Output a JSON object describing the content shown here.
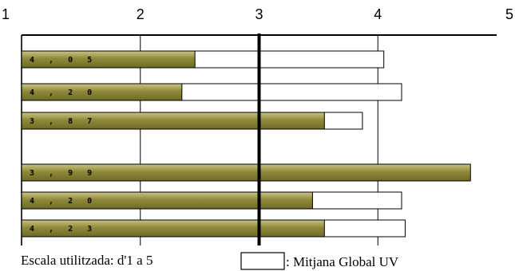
{
  "chart_data": {
    "type": "bar",
    "orientation": "horizontal",
    "xlim": [
      1,
      5
    ],
    "ticks": [
      "1",
      "2",
      "3",
      "4",
      "5"
    ],
    "reference_line": 3,
    "grid": true,
    "groups": [
      {
        "rows": [
          {
            "label": "4 , 0 5",
            "value": 2.46,
            "global_mean": 4.05
          },
          {
            "label": "4 , 2 0",
            "value": 2.35,
            "global_mean": 4.2
          },
          {
            "label": "3 , 8 7",
            "value": 3.55,
            "global_mean": 3.87
          }
        ]
      },
      {
        "rows": [
          {
            "label": "3 , 9 9",
            "value": 4.78,
            "global_mean": 3.99
          },
          {
            "label": "4 , 2 0",
            "value": 3.45,
            "global_mean": 4.2
          },
          {
            "label": "4 , 2 3",
            "value": 3.55,
            "global_mean": 4.23
          }
        ]
      }
    ],
    "colors": {
      "bar": "#8f8a3a",
      "bar_light": "#c9c583",
      "outline": "#000000"
    },
    "footer_scale": "Escala utilitzada: d'1 a 5",
    "legend_label": ": Mitjana Global UV"
  }
}
